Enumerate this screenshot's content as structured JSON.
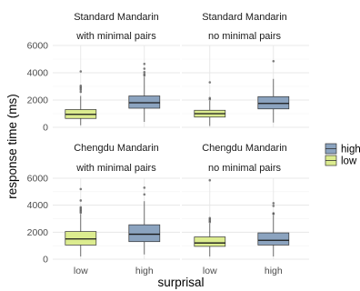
{
  "chart_data": {
    "type": "boxplot",
    "xlabel": "surprisal",
    "ylabel": "response time (ms)",
    "categories": [
      "low",
      "high"
    ],
    "ylim": [
      0,
      6000
    ],
    "yticks": [
      0,
      2000,
      4000,
      6000
    ],
    "legend": {
      "position": "right",
      "entries": [
        {
          "name": "high",
          "color": "#8BA3BF"
        },
        {
          "name": "low",
          "color": "#DCEC8F"
        }
      ]
    },
    "facets": [
      {
        "title_line1": "Standard Mandarin",
        "title_line2": "with minimal pairs",
        "boxes": [
          {
            "group": "low",
            "whisker_low": 150,
            "q1": 650,
            "median": 950,
            "q3": 1300,
            "whisker_high": 2300,
            "outliers": [
              2600,
              2750,
              2850,
              2950,
              3050,
              4100
            ]
          },
          {
            "group": "high",
            "whisker_low": 400,
            "q1": 1400,
            "median": 1800,
            "q3": 2300,
            "whisker_high": 3700,
            "outliers": [
              3800,
              3900,
              4050,
              4300,
              4650
            ]
          }
        ]
      },
      {
        "title_line1": "Standard Mandarin",
        "title_line2": "no minimal pairs",
        "boxes": [
          {
            "group": "low",
            "whisker_low": 100,
            "q1": 750,
            "median": 1000,
            "q3": 1250,
            "whisker_high": 1950,
            "outliers": [
              2050,
              2150,
              3300
            ]
          },
          {
            "group": "high",
            "whisker_low": 350,
            "q1": 1350,
            "median": 1750,
            "q3": 2250,
            "whisker_high": 3550,
            "outliers": [
              4850
            ]
          }
        ]
      },
      {
        "title_line1": "Chengdu Mandarin",
        "title_line2": "with minimal pairs",
        "boxes": [
          {
            "group": "low",
            "whisker_low": 200,
            "q1": 1050,
            "median": 1500,
            "q3": 2050,
            "whisker_high": 3350,
            "outliers": [
              3450,
              3550,
              3650,
              3750,
              3850,
              4350,
              5200
            ]
          },
          {
            "group": "high",
            "whisker_low": 350,
            "q1": 1300,
            "median": 1850,
            "q3": 2550,
            "whisker_high": 4300,
            "outliers": [
              4800,
              5300
            ]
          }
        ]
      },
      {
        "title_line1": "Chengdu Mandarin",
        "title_line2": "no minimal pairs",
        "boxes": [
          {
            "group": "low",
            "whisker_low": 200,
            "q1": 950,
            "median": 1200,
            "q3": 1650,
            "whisker_high": 2650,
            "outliers": [
              2750,
              2850,
              2950,
              3050,
              5850
            ]
          },
          {
            "group": "high",
            "whisker_low": 200,
            "q1": 1050,
            "median": 1400,
            "q3": 1950,
            "whisker_high": 3250,
            "outliers": [
              3350,
              3400,
              3950,
              4150
            ]
          }
        ]
      }
    ]
  }
}
